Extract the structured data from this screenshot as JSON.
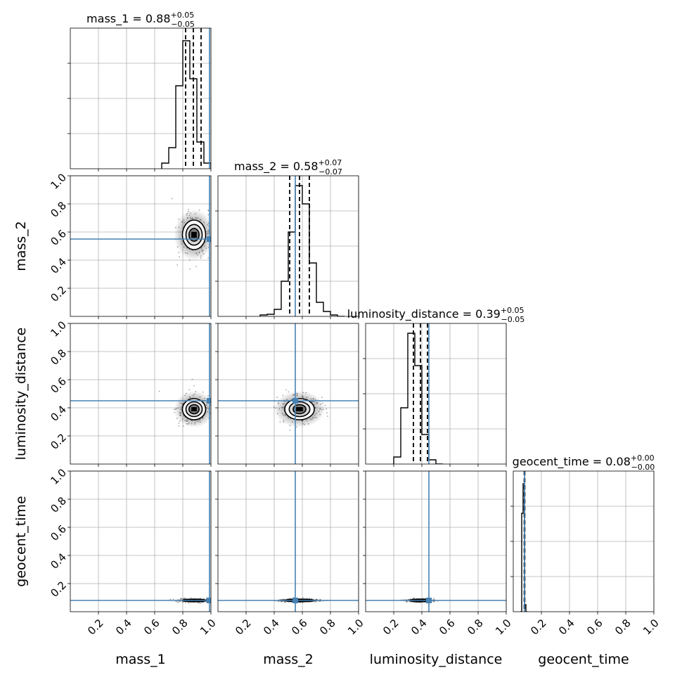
{
  "chart_data": {
    "type": "corner",
    "parameters": [
      {
        "name": "mass_1",
        "median": 0.88,
        "plus": "0.05",
        "minus": "0.05",
        "title_main": "mass_1 = 0.88",
        "title_sup": "+0.05",
        "title_sub": "−0.05",
        "truth": 0.99,
        "quantiles": [
          0.82,
          0.875,
          0.93
        ],
        "hist_edges": [
          0.65,
          0.7,
          0.75,
          0.8,
          0.85,
          0.9,
          0.95,
          1.0
        ],
        "hist_counts": [
          0.04,
          0.15,
          0.59,
          0.91,
          0.64,
          0.19,
          0.04
        ]
      },
      {
        "name": "mass_2",
        "median": 0.58,
        "plus": "0.07",
        "minus": "0.07",
        "title_main": "mass_2 = 0.58",
        "title_sup": "+0.07",
        "title_sub": "−0.07",
        "truth": 0.55,
        "quantiles": [
          0.51,
          0.58,
          0.65
        ],
        "hist_edges": [
          0.3,
          0.35,
          0.4,
          0.45,
          0.5,
          0.55,
          0.6,
          0.65,
          0.7,
          0.75,
          0.8,
          0.85,
          0.9
        ],
        "hist_counts": [
          0.01,
          0.015,
          0.05,
          0.25,
          0.6,
          0.93,
          0.8,
          0.38,
          0.1,
          0.035,
          0.01,
          0.0
        ]
      },
      {
        "name": "luminosity_distance",
        "median": 0.39,
        "plus": "0.05",
        "minus": "0.05",
        "title_main": "luminosity_distance = 0.39",
        "title_sup": "+0.05",
        "title_sub": "−0.05",
        "truth": 0.45,
        "quantiles": [
          0.34,
          0.39,
          0.44
        ],
        "hist_edges": [
          0.2,
          0.25,
          0.3,
          0.35,
          0.4,
          0.45,
          0.5,
          0.55
        ],
        "hist_counts": [
          0.05,
          0.4,
          0.93,
          0.7,
          0.21,
          0.03,
          0.0
        ]
      },
      {
        "name": "geocent_time",
        "median": 0.08,
        "plus": "0.00",
        "minus": "0.00",
        "title_main": "geocent_time = 0.08",
        "title_sup": "+0.00",
        "title_sub": "−0.00",
        "truth": 0.08,
        "quantiles": [
          0.078,
          0.08,
          0.082
        ],
        "hist_edges": [
          0.05,
          0.06,
          0.07,
          0.08,
          0.09,
          0.1
        ],
        "hist_counts": [
          0.0,
          0.7,
          0.91,
          0.05,
          0.0
        ]
      }
    ],
    "axis_range": [
      0,
      1
    ],
    "tick_values": [
      0.2,
      0.4,
      0.6,
      0.8,
      1.0
    ],
    "tick_labels": [
      "0.2",
      "0.4",
      "0.6",
      "0.8",
      "1.0"
    ],
    "grid": true,
    "colors": {
      "truth": "#4682b4",
      "lines": "#000000",
      "grid": "#b0b0b0"
    }
  }
}
